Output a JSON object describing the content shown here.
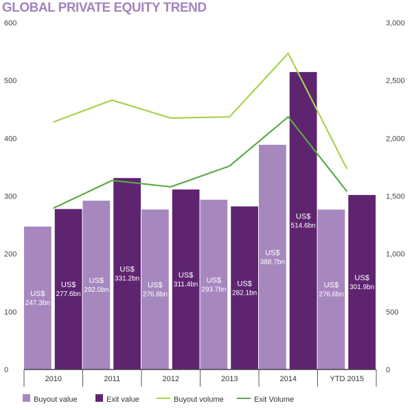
{
  "chart_data": {
    "type": "bar",
    "title": "GLOBAL PRIVATE EQUITY TREND",
    "categories": [
      "2010",
      "2011",
      "2012",
      "2013",
      "2014",
      "YTD 2015"
    ],
    "y_left": {
      "range": [
        0,
        600
      ],
      "ticks": [
        "0",
        "100",
        "200",
        "300",
        "400",
        "500",
        "600"
      ]
    },
    "y_right": {
      "range": [
        0,
        3000
      ],
      "ticks": [
        "0",
        "500",
        "1,000",
        "1,500",
        "2,000",
        "2,500",
        "3,000"
      ]
    },
    "grid": false,
    "legend_position": "bottom",
    "bar_series": [
      {
        "name": "Buyout value",
        "color": "#a688bf",
        "values": [
          247.3,
          292.0,
          276.8,
          293.7,
          388.7,
          276.6
        ],
        "labels_top": [
          "US$",
          "US$",
          "US$",
          "US$",
          "US$",
          "US$"
        ],
        "labels": [
          "247.3bn",
          "292.0bn",
          "276.8bn",
          "293.7bn",
          "388.7bn",
          "276.6bn"
        ]
      },
      {
        "name": "Exit value",
        "color": "#5e2470",
        "values": [
          277.6,
          331.2,
          311.4,
          282.1,
          514.6,
          301.9
        ],
        "labels_top": [
          "US$",
          "US$",
          "US$",
          "US$",
          "US$",
          "US$"
        ],
        "labels": [
          "277.6bn",
          "331.2bn",
          "311.4bn",
          "282.1bn",
          "514.6bn",
          "301.9bn"
        ]
      }
    ],
    "line_series": [
      {
        "name": "Buyout volume",
        "color": "#a8d14a",
        "axis": "right",
        "values": [
          2140,
          2330,
          2175,
          2185,
          2735,
          1735
        ]
      },
      {
        "name": "Exit Volume",
        "color": "#5aab45",
        "axis": "right",
        "values": [
          1395,
          1635,
          1580,
          1760,
          2185,
          1540
        ]
      }
    ]
  }
}
